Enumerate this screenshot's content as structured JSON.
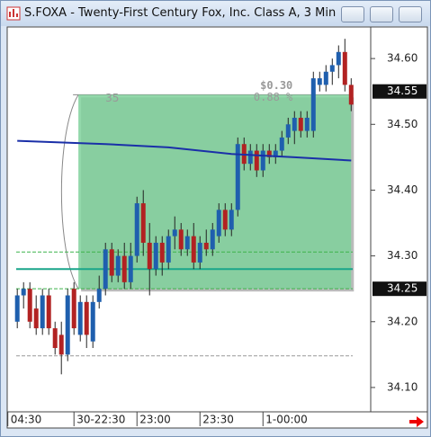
{
  "chart_data": {
    "type": "candlestick",
    "title": "S.FOXA - Twenty-First Century Fox, Inc. Class A, 3 Min",
    "x": [
      -9,
      -8,
      -7,
      -6,
      -5,
      -4,
      -3,
      -2,
      -1,
      0,
      1,
      2,
      3,
      4,
      5,
      6,
      7,
      8,
      9,
      10,
      11,
      12,
      13,
      14,
      15,
      16,
      17,
      18,
      19,
      20,
      21,
      22,
      23,
      24,
      25,
      26,
      27,
      28,
      29,
      30,
      31,
      32,
      33,
      34,
      35,
      36,
      37,
      38,
      39,
      40,
      41,
      42,
      43,
      44
    ],
    "open": [
      34.2,
      34.24,
      34.25,
      34.22,
      34.19,
      34.24,
      34.19,
      34.18,
      34.15,
      34.25,
      34.18,
      34.23,
      34.17,
      34.23,
      34.25,
      34.31,
      34.27,
      34.3,
      34.26,
      34.3,
      34.38,
      34.32,
      34.28,
      34.32,
      34.29,
      34.33,
      34.34,
      34.31,
      34.33,
      34.29,
      34.32,
      34.31,
      34.33,
      34.37,
      34.34,
      34.37,
      34.47,
      34.44,
      34.46,
      34.43,
      34.46,
      34.45,
      34.46,
      34.48,
      34.49,
      34.51,
      34.49,
      34.49,
      34.56,
      34.56,
      34.58,
      34.59,
      34.61,
      34.56
    ],
    "high": [
      34.25,
      34.26,
      34.26,
      34.24,
      34.25,
      34.25,
      34.2,
      34.2,
      34.25,
      34.26,
      34.24,
      34.24,
      34.24,
      34.27,
      34.32,
      34.32,
      34.31,
      34.32,
      34.32,
      34.39,
      34.4,
      34.35,
      34.33,
      34.33,
      34.34,
      34.36,
      34.35,
      34.34,
      34.35,
      34.33,
      34.34,
      34.35,
      34.38,
      34.38,
      34.38,
      34.48,
      34.48,
      34.47,
      34.47,
      34.47,
      34.47,
      34.47,
      34.49,
      34.51,
      34.52,
      34.52,
      34.52,
      34.58,
      34.58,
      34.59,
      34.6,
      34.62,
      34.63,
      34.57
    ],
    "low": [
      34.19,
      34.22,
      34.19,
      34.18,
      34.18,
      34.18,
      34.15,
      34.12,
      34.14,
      34.18,
      34.17,
      34.16,
      34.16,
      34.22,
      34.24,
      34.26,
      34.26,
      34.25,
      34.25,
      34.29,
      34.3,
      34.24,
      34.27,
      34.27,
      34.28,
      34.31,
      34.3,
      34.3,
      34.28,
      34.28,
      34.3,
      34.3,
      34.32,
      34.33,
      34.33,
      34.36,
      34.43,
      34.43,
      34.42,
      34.42,
      34.44,
      34.44,
      34.45,
      34.47,
      34.47,
      34.48,
      34.48,
      34.48,
      34.55,
      34.55,
      34.56,
      34.57,
      34.55,
      34.52
    ],
    "close": [
      34.24,
      34.25,
      34.2,
      34.19,
      34.24,
      34.19,
      34.16,
      34.15,
      34.24,
      34.19,
      34.23,
      34.18,
      34.23,
      34.25,
      34.31,
      34.27,
      34.3,
      34.26,
      34.3,
      34.38,
      34.32,
      34.28,
      34.32,
      34.29,
      34.33,
      34.34,
      34.31,
      34.33,
      34.29,
      34.32,
      34.31,
      34.34,
      34.37,
      34.34,
      34.37,
      34.47,
      34.44,
      34.46,
      34.43,
      34.46,
      34.45,
      34.46,
      34.48,
      34.5,
      34.51,
      34.49,
      34.51,
      34.57,
      34.57,
      34.58,
      34.59,
      34.61,
      34.56,
      34.53
    ],
    "up_color": "#1f5fae",
    "down_color": "#b22222",
    "average": {
      "color": "#1a2fa8",
      "x": [
        -9,
        5,
        15,
        25,
        35,
        44
      ],
      "values": [
        34.475,
        34.47,
        34.465,
        34.455,
        34.45,
        34.445
      ]
    },
    "levels": [
      {
        "value": 34.306,
        "color": "#3cb44b",
        "style": "dashed"
      },
      {
        "value": 34.25,
        "color": "#3cb44b",
        "style": "dashed"
      },
      {
        "value": 34.28,
        "color": "#1aa58a",
        "style": "solid"
      },
      {
        "value": 34.148,
        "color": "#999999",
        "style": "dashed"
      }
    ],
    "measure": {
      "x": [
        0.7,
        44
      ],
      "y": [
        34.25,
        34.545
      ],
      "color": "#7fd19b",
      "texts": [
        "$0.30",
        "0.88 %",
        "35"
      ]
    },
    "price_markers": [
      {
        "value": 34.55,
        "label": "34.55"
      },
      {
        "value": 34.25,
        "label": "34.25"
      }
    ],
    "xlim": [
      -10.6,
      47.1
    ],
    "ylim": [
      34.063,
      34.648
    ],
    "xticks": [
      {
        "value": -10.5,
        "label": "04:30"
      },
      {
        "value": 0,
        "label": "30-22:30"
      },
      {
        "value": 10,
        "label": "23:00"
      },
      {
        "value": 20,
        "label": "23:30"
      },
      {
        "value": 30,
        "label": "1-00:00"
      }
    ],
    "yticks": [
      {
        "value": 34.1,
        "label": "34.10"
      },
      {
        "value": 34.2,
        "label": "34.20"
      },
      {
        "value": 34.3,
        "label": "34.30"
      },
      {
        "value": 34.4,
        "label": "34.40"
      },
      {
        "value": 34.5,
        "label": "34.50"
      },
      {
        "value": 34.6,
        "label": "34.60"
      }
    ]
  }
}
